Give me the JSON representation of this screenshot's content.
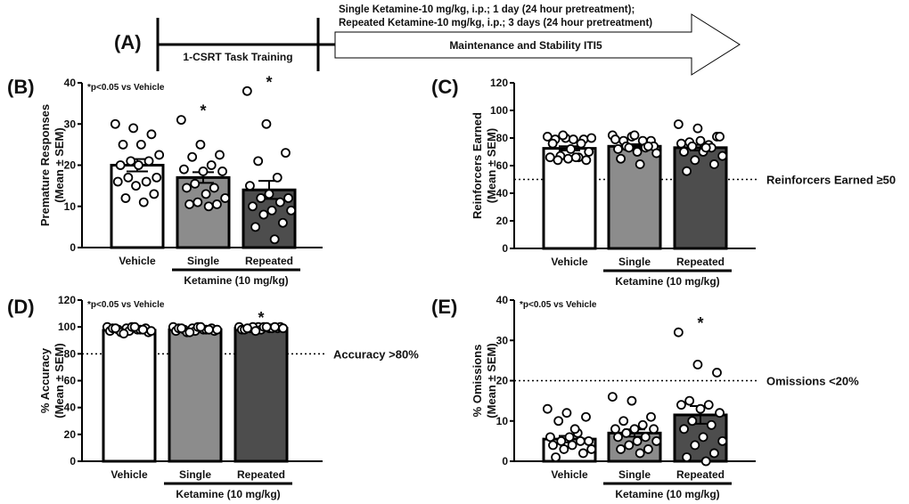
{
  "timeline": {
    "panel_label": "(A)",
    "training_label": "1-CSRT Task Training",
    "treatment_line1": "Single Ketamine-10 mg/kg, i.p.; 1 day (24 hour pretreatment);",
    "treatment_line2": "Repeated Ketamine-10 mg/kg, i.p.; 3 days (24 hour pretreatment)",
    "arrow_label": "Maintenance and Stability ITI5"
  },
  "colors": {
    "vehicle": "#ffffff",
    "single": "#8c8c8c",
    "repeated": "#4d4d4d"
  },
  "chart_data": [
    {
      "type": "bar",
      "panel_label": "(B)",
      "ylabel1": "Premature  Responses",
      "ylabel2": "(Mean ± SEM)",
      "ylim": [
        0,
        40
      ],
      "yticks": [
        0,
        10,
        20,
        30,
        40
      ],
      "categories": [
        "Vehicle",
        "Single",
        "Repeated"
      ],
      "group_label": "Ketamine (10 mg/kg)",
      "annotation": "*p<0.05 vs Vehicle",
      "means": [
        20,
        17,
        14
      ],
      "sem": [
        1.5,
        1.3,
        2.2
      ],
      "significant": [
        false,
        true,
        true
      ],
      "points": [
        [
          30,
          29,
          27.5,
          25,
          25,
          22.5,
          21,
          21,
          20,
          20,
          17,
          17,
          16,
          16,
          15,
          13,
          12,
          11
        ],
        [
          31,
          25,
          22.5,
          22,
          20,
          19,
          18.5,
          18.5,
          15.5,
          14.5,
          14.5,
          13,
          12,
          11,
          10.5,
          10.5,
          10
        ],
        [
          38,
          30,
          23,
          21,
          17,
          15,
          13,
          12,
          12,
          11,
          10,
          9,
          9,
          8,
          6,
          5,
          2
        ]
      ]
    },
    {
      "type": "bar",
      "panel_label": "(C)",
      "ylabel1": "Reinforcers Earned",
      "ylabel2": "(Mean ± SEM)",
      "ylim": [
        0,
        120
      ],
      "yticks": [
        0,
        20,
        40,
        60,
        80,
        100,
        120
      ],
      "categories": [
        "Vehicle",
        "Single",
        "Repeated"
      ],
      "group_label": "Ketamine (10 mg/kg)",
      "threshold": 50,
      "threshold_label": "Reinforcers Earned ≥50",
      "means": [
        72.5,
        74,
        73
      ],
      "sem": [
        1.5,
        1.5,
        2
      ],
      "significant": [
        false,
        false,
        false
      ],
      "points": [
        [
          81,
          80,
          79,
          79,
          79,
          80,
          82,
          76,
          76,
          72,
          70,
          67,
          66,
          66,
          65,
          64,
          64,
          66
        ],
        [
          82,
          81,
          78,
          78,
          78,
          79,
          82,
          74,
          74,
          73,
          72,
          70,
          69,
          73,
          74,
          65,
          61
        ],
        [
          90,
          87,
          81,
          77,
          75,
          76,
          78,
          81,
          74,
          73,
          70,
          70,
          67,
          64,
          61,
          56,
          73
        ]
      ]
    },
    {
      "type": "bar",
      "panel_label": "(D)",
      "ylabel1": "% Accuracy",
      "ylabel2": "(Mean ± SEM)",
      "ylim": [
        0,
        120
      ],
      "yticks": [
        0,
        20,
        40,
        60,
        80,
        100,
        120
      ],
      "categories": [
        "Vehicle",
        "Single",
        "Repeated"
      ],
      "group_label": "Ketamine (10 mg/kg)",
      "annotation": "*p<0.05 vs Vehicle",
      "threshold": 80,
      "threshold_label": "Accuracy >80%",
      "means": [
        97.5,
        98,
        99
      ],
      "sem": [
        0.4,
        0.3,
        0.3
      ],
      "significant": [
        false,
        false,
        true
      ],
      "points": [
        [
          100,
          99,
          99,
          98,
          98,
          97,
          97,
          96,
          96,
          98,
          99,
          100,
          97,
          95,
          98,
          99,
          100
        ],
        [
          100,
          99,
          99,
          98,
          98,
          97,
          97,
          97,
          96,
          98,
          99,
          100,
          98,
          96,
          98,
          99,
          100
        ],
        [
          100,
          100,
          99,
          99,
          99,
          98,
          98,
          100,
          100,
          99,
          98,
          100,
          99,
          97,
          100,
          99,
          100
        ]
      ]
    },
    {
      "type": "bar",
      "panel_label": "(E)",
      "ylabel1": "% Omissions",
      "ylabel2": "(Mean ± SEM)",
      "ylim": [
        0,
        40
      ],
      "yticks": [
        0,
        10,
        20,
        30,
        40
      ],
      "categories": [
        "Vehicle",
        "Single",
        "Repeated"
      ],
      "group_label": "Ketamine (10 mg/kg)",
      "annotation": "*p<0.05 vs Vehicle",
      "threshold": 20,
      "threshold_label": "Omissions <20%",
      "means": [
        5.5,
        7,
        11.5
      ],
      "sem": [
        0.8,
        0.9,
        2.2
      ],
      "significant": [
        false,
        false,
        true
      ],
      "points": [
        [
          13,
          12,
          11,
          10,
          7,
          6,
          6,
          5,
          5,
          5,
          4,
          4,
          3,
          3,
          2,
          1,
          8
        ],
        [
          16,
          15,
          11,
          10,
          9,
          8,
          8,
          8,
          7,
          6,
          6,
          5,
          5,
          4,
          3,
          3,
          2
        ],
        [
          32,
          24,
          22,
          15,
          14,
          14,
          13,
          12,
          10,
          9,
          8,
          6,
          5,
          4,
          2,
          1,
          0
        ]
      ]
    }
  ]
}
